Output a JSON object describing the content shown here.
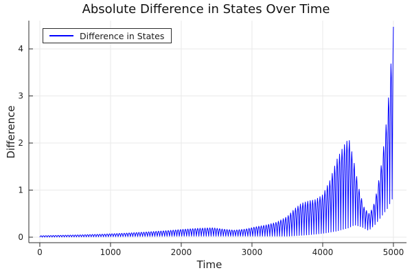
{
  "figure": {
    "background": "#ffffff"
  },
  "chart_data": {
    "type": "line",
    "title": "Absolute Difference in States Over Time",
    "xlabel": "Time",
    "ylabel": "Difference",
    "grid": true,
    "legend_position": "top-left",
    "xlim": [
      -155,
      5185
    ],
    "ylim": [
      -0.117,
      4.6
    ],
    "x_ticks": {
      "values": [
        0,
        1000,
        2000,
        3000,
        4000,
        5000
      ],
      "labels": [
        "0",
        "1000",
        "2000",
        "3000",
        "4000",
        "5000"
      ]
    },
    "y_ticks": {
      "values": [
        0,
        1,
        2,
        3,
        4
      ],
      "labels": [
        "0",
        "1",
        "2",
        "3",
        "4"
      ]
    },
    "colors": {
      "grid": "#e9e9e9",
      "spine": "#2b2b2b",
      "tick_label": "#1f1f1f",
      "title": "#111111"
    },
    "series": [
      {
        "name": "Difference in States",
        "color": "#0000ff",
        "line_width": 1,
        "x_range": [
          0,
          5000
        ],
        "waveform": "abs-sine",
        "oscillation_period": 34.6,
        "envelope_upper": [
          [
            0,
            0.03
          ],
          [
            300,
            0.04
          ],
          [
            600,
            0.05
          ],
          [
            900,
            0.065
          ],
          [
            1200,
            0.085
          ],
          [
            1500,
            0.11
          ],
          [
            1800,
            0.14
          ],
          [
            2050,
            0.17
          ],
          [
            2250,
            0.19
          ],
          [
            2450,
            0.2
          ],
          [
            2600,
            0.17
          ],
          [
            2750,
            0.15
          ],
          [
            2900,
            0.17
          ],
          [
            3050,
            0.22
          ],
          [
            3200,
            0.26
          ],
          [
            3350,
            0.32
          ],
          [
            3500,
            0.44
          ],
          [
            3600,
            0.6
          ],
          [
            3700,
            0.72
          ],
          [
            3800,
            0.77
          ],
          [
            3900,
            0.8
          ],
          [
            4000,
            0.9
          ],
          [
            4100,
            1.2
          ],
          [
            4200,
            1.65
          ],
          [
            4300,
            1.95
          ],
          [
            4370,
            2.1
          ],
          [
            4440,
            1.62
          ],
          [
            4510,
            1.05
          ],
          [
            4580,
            0.65
          ],
          [
            4650,
            0.5
          ],
          [
            4710,
            0.62
          ],
          [
            4770,
            1.0
          ],
          [
            4830,
            1.55
          ],
          [
            4880,
            2.15
          ],
          [
            4920,
            2.75
          ],
          [
            4950,
            3.35
          ],
          [
            4975,
            3.9
          ],
          [
            5000,
            4.47
          ]
        ],
        "envelope_lower": [
          [
            0,
            0.0
          ],
          [
            1000,
            0.01
          ],
          [
            2000,
            0.02
          ],
          [
            3000,
            0.02
          ],
          [
            3500,
            0.02
          ],
          [
            3800,
            0.05
          ],
          [
            4000,
            0.08
          ],
          [
            4200,
            0.13
          ],
          [
            4370,
            0.2
          ],
          [
            4450,
            0.26
          ],
          [
            4550,
            0.22
          ],
          [
            4650,
            0.14
          ],
          [
            4750,
            0.28
          ],
          [
            4850,
            0.48
          ],
          [
            4920,
            0.62
          ],
          [
            4970,
            0.78
          ],
          [
            5000,
            0.85
          ]
        ]
      }
    ]
  }
}
